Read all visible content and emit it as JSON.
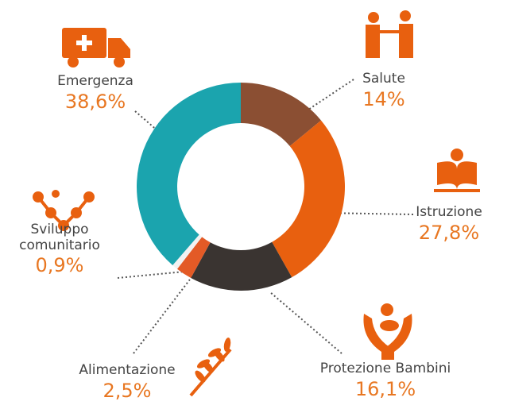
{
  "chart_data": {
    "type": "pie",
    "categories": [
      "Salute",
      "Istruzione",
      "Protezione Bambini",
      "Alimentazione",
      "Sviluppo comunitario",
      "Emergenza"
    ],
    "values": [
      14,
      27.8,
      16.1,
      2.5,
      0.9,
      38.6
    ],
    "value_labels": [
      "14%",
      "27,8%",
      "16,1%",
      "2,5%",
      "0,9%",
      "38,6%"
    ],
    "colors": [
      "#8b4f33",
      "#e8600f",
      "#3a3431",
      "#e35a26",
      "#f2f2f2",
      "#1ba4ae"
    ]
  }
}
